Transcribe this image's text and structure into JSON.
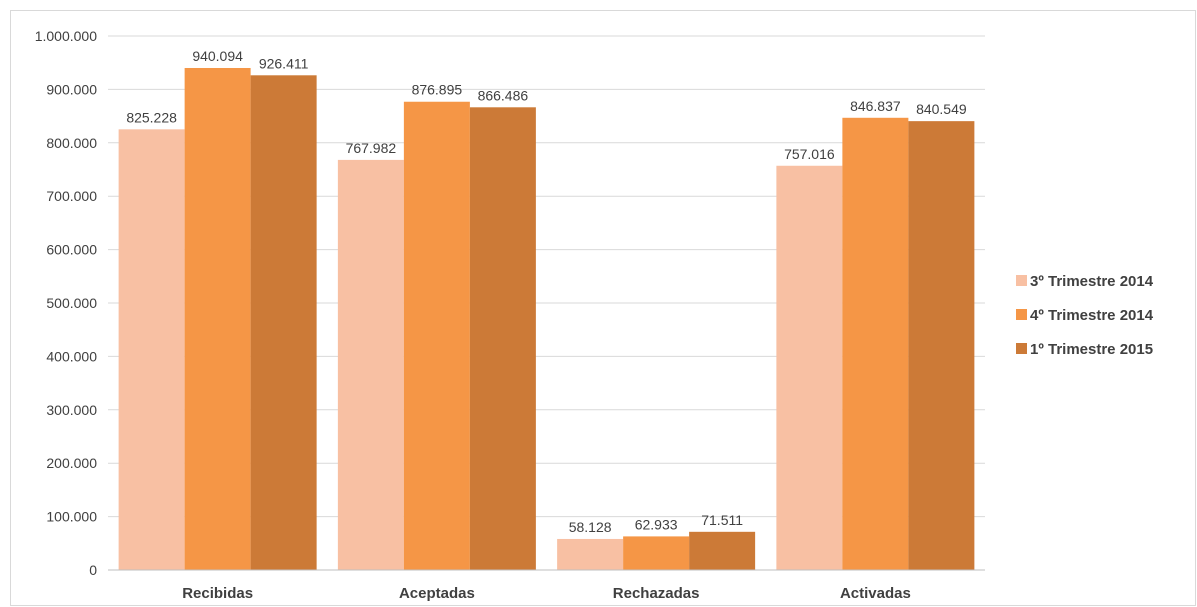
{
  "chart_data": {
    "type": "bar",
    "categories": [
      "Recibidas",
      "Aceptadas",
      "Rechazadas",
      "Activadas"
    ],
    "series": [
      {
        "name": "3º Trimestre 2014",
        "color": "#f8c0a3",
        "values": [
          825228,
          767982,
          58128,
          757016
        ],
        "labels": [
          "825.228",
          "767.982",
          "58.128",
          "757.016"
        ]
      },
      {
        "name": "4º Trimestre 2014",
        "color": "#f59646",
        "values": [
          940094,
          876895,
          62933,
          846837
        ],
        "labels": [
          "940.094",
          "876.895",
          "62.933",
          "846.837"
        ]
      },
      {
        "name": "1º Trimestre 2015",
        "color": "#cc7a37",
        "values": [
          926411,
          866486,
          71511,
          840549
        ],
        "labels": [
          "926.411",
          "866.486",
          "71.511",
          "840.549"
        ]
      }
    ],
    "yticks": [
      0,
      100000,
      200000,
      300000,
      400000,
      500000,
      600000,
      700000,
      800000,
      900000,
      1000000
    ],
    "ytick_labels": [
      "0",
      "100.000",
      "200.000",
      "300.000",
      "400.000",
      "500.000",
      "600.000",
      "700.000",
      "800.000",
      "900.000",
      "1.000.000"
    ],
    "ylim": [
      0,
      1000000
    ],
    "grid": true,
    "legend_position": "right",
    "title": "",
    "xlabel": "",
    "ylabel": ""
  }
}
